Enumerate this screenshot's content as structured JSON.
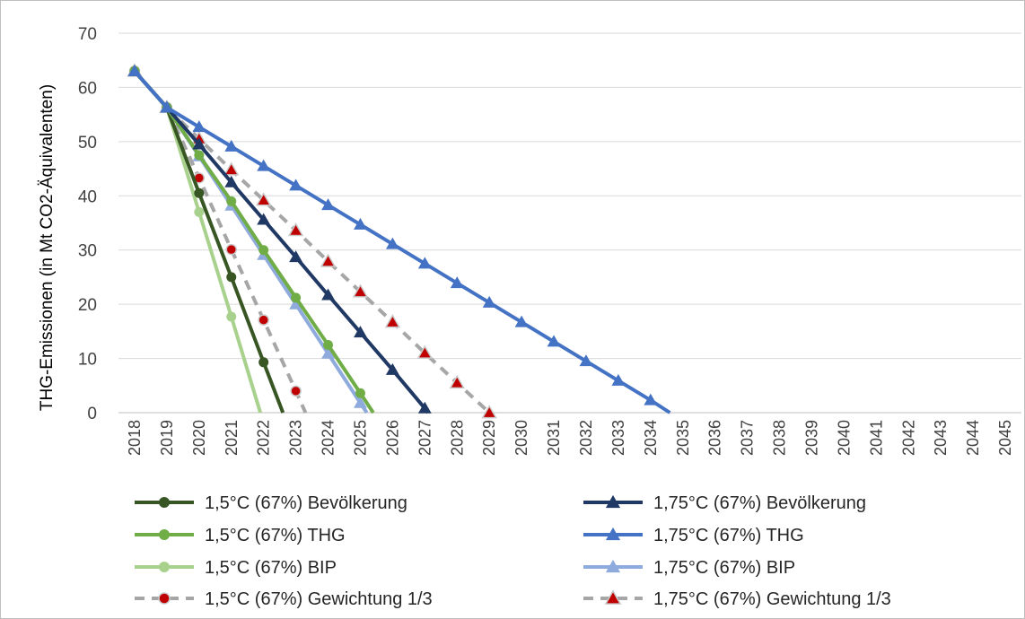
{
  "chart_data": {
    "type": "line",
    "title": "",
    "xlabel": "",
    "ylabel": "THG-Emissionen (in Mt CO2-Äquivalenten)",
    "ylim": [
      0,
      70
    ],
    "yticks": [
      0,
      10,
      20,
      30,
      40,
      50,
      60,
      70
    ],
    "x": [
      "2018",
      "2019",
      "2020",
      "2021",
      "2022",
      "2023",
      "2024",
      "2025",
      "2026",
      "2027",
      "2028",
      "2029",
      "2030",
      "2031",
      "2032",
      "2033",
      "2034",
      "2035",
      "2036",
      "2037",
      "2038",
      "2039",
      "2040",
      "2041",
      "2042",
      "2043",
      "2044",
      "2045"
    ],
    "grid": true,
    "legend_position": "bottom",
    "series": [
      {
        "name": "1,5°C (67%) Bevölkerung",
        "color": "#375623",
        "marker": "circle",
        "dash": "solid",
        "points": [
          [
            2018,
            63
          ],
          [
            2019,
            56.3
          ],
          [
            2020,
            40.5
          ],
          [
            2021,
            25
          ],
          [
            2022,
            9.3
          ],
          [
            2022.6,
            0
          ]
        ]
      },
      {
        "name": "1,5°C (67%) THG",
        "color": "#70AD47",
        "marker": "circle",
        "dash": "solid",
        "points": [
          [
            2018,
            63
          ],
          [
            2019,
            56.3
          ],
          [
            2020,
            47.5
          ],
          [
            2021,
            39
          ],
          [
            2022,
            30
          ],
          [
            2023,
            21.2
          ],
          [
            2024,
            12.5
          ],
          [
            2025,
            3.6
          ],
          [
            2025.4,
            0
          ]
        ]
      },
      {
        "name": "1,5°C (67%) BIP",
        "color": "#A9D18E",
        "marker": "circle",
        "dash": "solid",
        "points": [
          [
            2018,
            63
          ],
          [
            2019,
            56.3
          ],
          [
            2020,
            37
          ],
          [
            2021,
            17.7
          ],
          [
            2021.9,
            0
          ]
        ]
      },
      {
        "name": "1,5°C (67%) Gewichtung 1/3",
        "color": "#A6A6A6",
        "marker": "circle-red",
        "dash": "dashed",
        "points": [
          [
            2018,
            63
          ],
          [
            2019,
            56.3
          ],
          [
            2020,
            43.3
          ],
          [
            2021,
            30.1
          ],
          [
            2022,
            17.1
          ],
          [
            2023,
            4
          ],
          [
            2023.3,
            0
          ]
        ]
      },
      {
        "name": "1,75°C (67%) Bevölkerung",
        "color": "#203864",
        "marker": "triangle",
        "dash": "solid",
        "points": [
          [
            2018,
            63
          ],
          [
            2019,
            56.3
          ],
          [
            2020,
            49.5
          ],
          [
            2021,
            42.5
          ],
          [
            2022,
            35.6
          ],
          [
            2023,
            28.7
          ],
          [
            2024,
            21.7
          ],
          [
            2025,
            14.8
          ],
          [
            2026,
            7.9
          ],
          [
            2027,
            0.8
          ],
          [
            2027.1,
            0
          ]
        ]
      },
      {
        "name": "1,75°C (67%) THG",
        "color": "#4472C4",
        "marker": "triangle",
        "dash": "solid",
        "points": [
          [
            2018,
            63
          ],
          [
            2019,
            56.3
          ],
          [
            2020,
            52.7
          ],
          [
            2021,
            49.1
          ],
          [
            2022,
            45.5
          ],
          [
            2023,
            41.9
          ],
          [
            2024,
            38.3
          ],
          [
            2025,
            34.7
          ],
          [
            2026,
            31.1
          ],
          [
            2027,
            27.5
          ],
          [
            2028,
            23.9
          ],
          [
            2029,
            20.3
          ],
          [
            2030,
            16.7
          ],
          [
            2031,
            13.1
          ],
          [
            2032,
            9.5
          ],
          [
            2033,
            5.9
          ],
          [
            2034,
            2.3
          ],
          [
            2034.6,
            0
          ]
        ]
      },
      {
        "name": "1,75°C (67%) BIP",
        "color": "#8FAADC",
        "marker": "triangle",
        "dash": "solid",
        "points": [
          [
            2018,
            63
          ],
          [
            2019,
            56.3
          ],
          [
            2020,
            47.3
          ],
          [
            2021,
            38.2
          ],
          [
            2022,
            29.1
          ],
          [
            2023,
            20
          ],
          [
            2024,
            10.9
          ],
          [
            2025,
            1.8
          ],
          [
            2025.2,
            0
          ]
        ]
      },
      {
        "name": "1,75°C (67%) Gewichtung 1/3",
        "color": "#A6A6A6",
        "marker": "triangle-red",
        "dash": "dashed",
        "points": [
          [
            2018,
            63
          ],
          [
            2019,
            56.3
          ],
          [
            2020,
            50.5
          ],
          [
            2021,
            44.8
          ],
          [
            2022,
            39.2
          ],
          [
            2023,
            33.6
          ],
          [
            2024,
            27.9
          ],
          [
            2025,
            22.3
          ],
          [
            2026,
            16.7
          ],
          [
            2027,
            11
          ],
          [
            2028,
            5.5
          ],
          [
            2029,
            0
          ]
        ]
      }
    ]
  }
}
